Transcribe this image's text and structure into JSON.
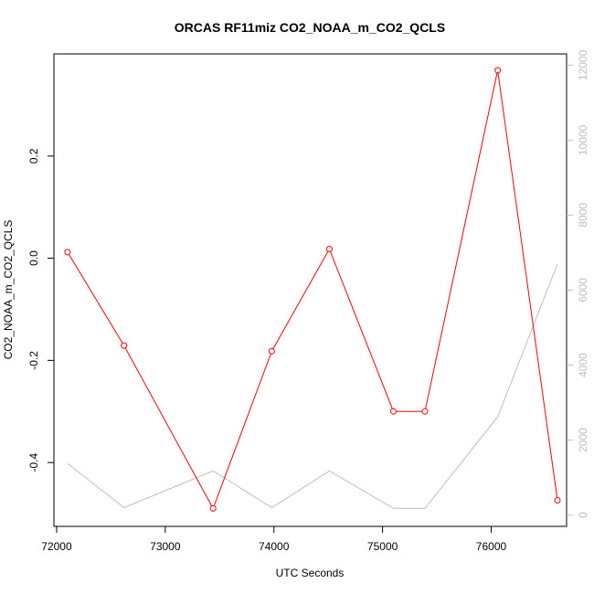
{
  "chart_data": {
    "type": "line",
    "title": "ORCAS RF11miz CO2_NOAA_m_CO2_QCLS",
    "xlabel": "UTC Seconds",
    "ylabel": "CO2_NOAA_m_CO2_QCLS",
    "xlim": [
      71975,
      76694
    ],
    "ylim": [
      -0.525,
      0.4
    ],
    "y2lim": [
      -300,
      12300
    ],
    "x_ticks": [
      72000,
      73000,
      74000,
      75000,
      76000
    ],
    "y_ticks": [
      -0.4,
      -0.2,
      0.0,
      0.2
    ],
    "y_tick_labels": [
      "-0.4",
      "-0.2",
      "0.0",
      "0.2"
    ],
    "y2_ticks": [
      0,
      2000,
      4000,
      6000,
      8000,
      10000,
      12000
    ],
    "grid": false,
    "colors": {
      "primary": "#ff0000",
      "secondary": "#bebebe"
    },
    "series": [
      {
        "axis": "left",
        "style": "line+points",
        "x": [
          72100,
          72620,
          73440,
          73980,
          74510,
          75100,
          75390,
          76060,
          76610
        ],
        "y": [
          0.012,
          -0.171,
          -0.49,
          -0.182,
          0.018,
          -0.3,
          -0.3,
          0.368,
          -0.474
        ]
      },
      {
        "axis": "right",
        "style": "line",
        "x": [
          72100,
          72620,
          73440,
          73980,
          74510,
          75100,
          75390,
          76060,
          76610
        ],
        "y": [
          1380,
          200,
          1180,
          200,
          1180,
          180,
          180,
          2620,
          6700
        ]
      }
    ]
  }
}
